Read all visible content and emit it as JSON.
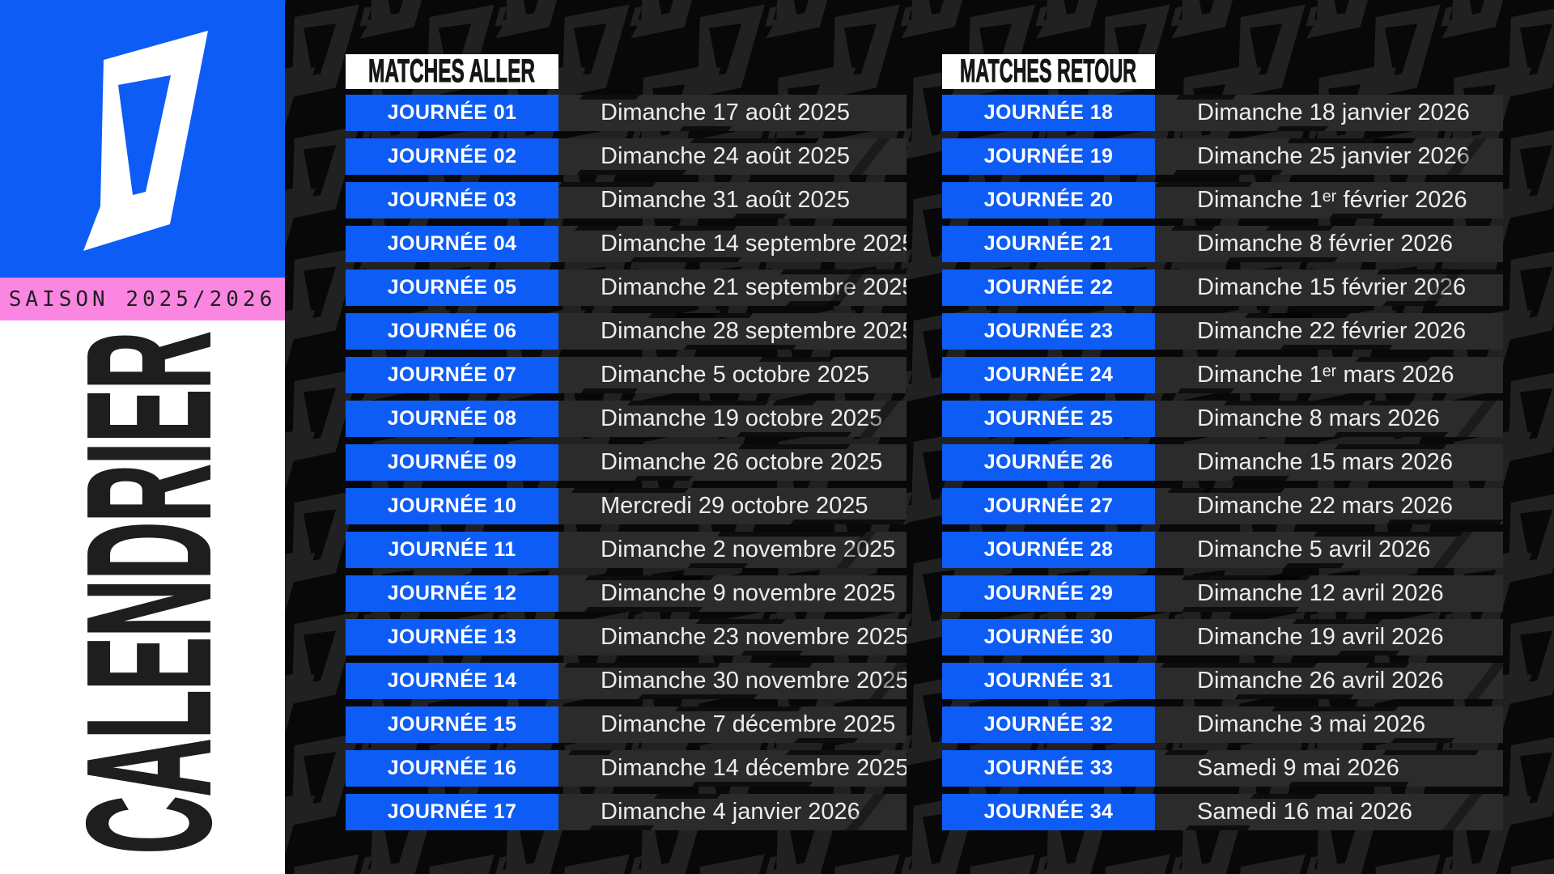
{
  "left_panel": {
    "season_label": "SAISON 2025/2026",
    "calendar_title": "CALENDRIER"
  },
  "tables": [
    {
      "id": "aller",
      "header": "MATCHES ALLER",
      "rows": [
        {
          "journee": "JOURNÉE 01",
          "date": "Dimanche 17 août 2025"
        },
        {
          "journee": "JOURNÉE 02",
          "date": "Dimanche 24 août 2025"
        },
        {
          "journee": "JOURNÉE 03",
          "date": "Dimanche 31 août 2025"
        },
        {
          "journee": "JOURNÉE 04",
          "date": "Dimanche 14 septembre 2025"
        },
        {
          "journee": "JOURNÉE 05",
          "date": "Dimanche 21 septembre 2025"
        },
        {
          "journee": "JOURNÉE 06",
          "date": "Dimanche 28 septembre 2025"
        },
        {
          "journee": "JOURNÉE 07",
          "date": "Dimanche 5 octobre 2025"
        },
        {
          "journee": "JOURNÉE 08",
          "date": "Dimanche 19 octobre 2025"
        },
        {
          "journee": "JOURNÉE 09",
          "date": "Dimanche 26 octobre 2025"
        },
        {
          "journee": "JOURNÉE 10",
          "date": "Mercredi 29 octobre 2025"
        },
        {
          "journee": "JOURNÉE 11",
          "date": "Dimanche 2 novembre 2025"
        },
        {
          "journee": "JOURNÉE 12",
          "date": "Dimanche 9 novembre 2025"
        },
        {
          "journee": "JOURNÉE 13",
          "date": "Dimanche 23 novembre 2025"
        },
        {
          "journee": "JOURNÉE 14",
          "date": "Dimanche 30 novembre 2025"
        },
        {
          "journee": "JOURNÉE 15",
          "date": "Dimanche 7 décembre 2025"
        },
        {
          "journee": "JOURNÉE 16",
          "date": "Dimanche 14 décembre 2025"
        },
        {
          "journee": "JOURNÉE 17",
          "date": "Dimanche 4 janvier 2026"
        }
      ]
    },
    {
      "id": "retour",
      "header": "MATCHES RETOUR",
      "rows": [
        {
          "journee": "JOURNÉE 18",
          "date": "Dimanche 18 janvier 2026"
        },
        {
          "journee": "JOURNÉE 19",
          "date": "Dimanche 25 janvier 2026"
        },
        {
          "journee": "JOURNÉE 20",
          "date": "Dimanche 1ᵉʳ février 2026"
        },
        {
          "journee": "JOURNÉE 21",
          "date": "Dimanche 8 février 2026"
        },
        {
          "journee": "JOURNÉE 22",
          "date": "Dimanche 15 février 2026"
        },
        {
          "journee": "JOURNÉE 23",
          "date": "Dimanche 22 février 2026"
        },
        {
          "journee": "JOURNÉE 24",
          "date": "Dimanche 1ᵉʳ mars 2026"
        },
        {
          "journee": "JOURNÉE 25",
          "date": "Dimanche 8 mars 2026"
        },
        {
          "journee": "JOURNÉE 26",
          "date": "Dimanche 15 mars 2026"
        },
        {
          "journee": "JOURNÉE 27",
          "date": "Dimanche 22 mars 2026"
        },
        {
          "journee": "JOURNÉE 28",
          "date": "Dimanche 5 avril 2026"
        },
        {
          "journee": "JOURNÉE 29",
          "date": "Dimanche 12 avril 2026"
        },
        {
          "journee": "JOURNÉE 30",
          "date": "Dimanche 19 avril 2026"
        },
        {
          "journee": "JOURNÉE 31",
          "date": "Dimanche 26 avril 2026"
        },
        {
          "journee": "JOURNÉE 32",
          "date": "Dimanche 3 mai 2026"
        },
        {
          "journee": "JOURNÉE 33",
          "date": "Samedi 9 mai 2026"
        },
        {
          "journee": "JOURNÉE 34",
          "date": "Samedi 16 mai 2026"
        }
      ]
    }
  ],
  "colors": {
    "blue": "#0d5cf6",
    "pink": "#fa86e2",
    "cell": "#2b2b2b",
    "bg": "#080808",
    "pattern": "#212121",
    "white": "#ffffff"
  }
}
